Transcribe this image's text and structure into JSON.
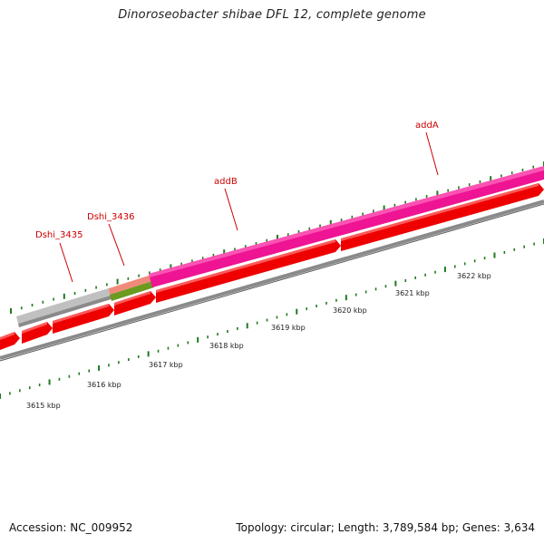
{
  "title": "Dinoroseobacter shibae DFL 12, complete genome",
  "footer": {
    "accession": "Accession: NC_009952",
    "summary": "Topology: circular; Length: 3,789,584 bp; Genes: 3,634"
  },
  "colors": {
    "cds": "#ee0000",
    "gene_pink": "#ee1493",
    "gene_gray": "#bdbdbd",
    "gene_green": "#6b9a1e",
    "backbone": "#888888",
    "tick": "#1e7a1e",
    "label": "#cc0000"
  },
  "gene_labels": [
    {
      "name": "Dshi_3435"
    },
    {
      "name": "Dshi_3436"
    },
    {
      "name": "addB"
    },
    {
      "name": "addA"
    }
  ],
  "scale_labels": [
    "3615 kbp",
    "3616 kbp",
    "3617 kbp",
    "3618 kbp",
    "3619 kbp",
    "3620 kbp",
    "3621 kbp",
    "3622 kbp"
  ]
}
